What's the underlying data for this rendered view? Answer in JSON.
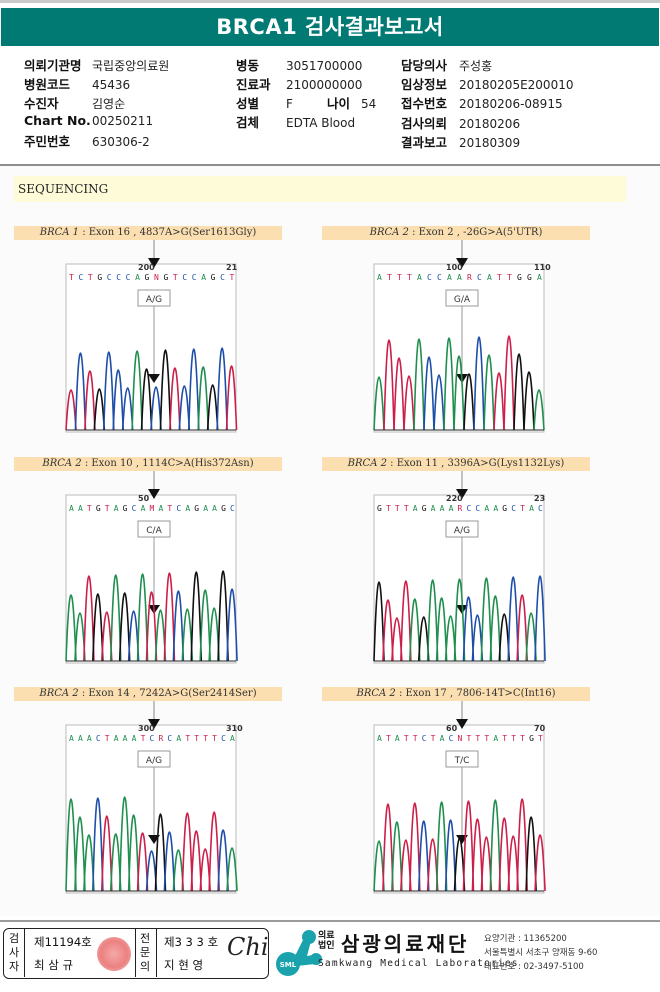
{
  "title": "BRCA1 검사결과보고서",
  "info": {
    "col1": [
      {
        "label": "의뢰기관명",
        "value": "국립중앙의료원"
      },
      {
        "label": "병원코드",
        "value": "45436"
      },
      {
        "label": "수진자",
        "value": "김영순"
      },
      {
        "label": "Chart No.",
        "value": "00250211"
      },
      {
        "label": "주민번호",
        "value": "630306-2"
      }
    ],
    "col2": [
      {
        "label": "병동",
        "value": "3051700000"
      },
      {
        "label": "진료과",
        "value": "2100000000"
      },
      {
        "label": "성별",
        "value": "F"
      },
      {
        "label": "검체",
        "value": "EDTA Blood"
      }
    ],
    "age": {
      "label": "나이",
      "value": "54"
    },
    "col3": [
      {
        "label": "담당의사",
        "value": "주성홍"
      },
      {
        "label": "임상정보",
        "value": "20180205E200010"
      },
      {
        "label": "접수번호",
        "value": "20180206-08915"
      },
      {
        "label": "검사의뢰",
        "value": "20180206"
      },
      {
        "label": "결과보고",
        "value": "20180309"
      }
    ]
  },
  "section_title": "SEQUENCING",
  "panels": [
    {
      "gene": "BRCA 1",
      "desc": " : Exon 16 , 4837A>G(Ser1613Gly)",
      "sequence": "TCTGCCCAGNGTCCAGCT",
      "pos_labels": [
        "200",
        "21"
      ],
      "call": "A/G"
    },
    {
      "gene": "BRCA 2",
      "desc": " : Exon 2 , -26G>A(5'UTR)",
      "sequence": "ATTTACCAARCATTGGA",
      "pos_labels": [
        "100",
        "110"
      ],
      "call": "G/A"
    },
    {
      "gene": "BRCA 2",
      "desc": " : Exon 10 , 1114C>A(His372Asn)",
      "sequence": "AATGTAGCAMATCAGAAGC",
      "pos_labels": [
        "50",
        ""
      ],
      "call": "C/A"
    },
    {
      "gene": "BRCA 2",
      "desc": " : Exon 11 , 3396A>G(Lys1132Lys)",
      "sequence": "GTTTAGAAARCCAAGCTAC",
      "pos_labels": [
        "220",
        "23"
      ],
      "call": "A/G"
    },
    {
      "gene": "BRCA 2",
      "desc": " : Exon 14 , 7242A>G(Ser2414Ser)",
      "sequence": "AAACTAAATCRCATTTTCA",
      "pos_labels": [
        "300",
        "310"
      ],
      "call": "A/G"
    },
    {
      "gene": "BRCA 2",
      "desc": " : Exon 17 , 7806-14T>C(Int16)",
      "sequence": "ATATTCTACNTTTATTTGT",
      "pos_labels": [
        "60",
        "70"
      ],
      "call": "T/C"
    }
  ],
  "footer": {
    "examiner_label": "검사자",
    "examiner_no": "제11194호",
    "examiner_name": "최 삼 규",
    "specialist_label": "전문의",
    "specialist_no": "제3 3 3 호",
    "specialist_name": "지 현 영",
    "signature": "Chi",
    "logo_text": "SML",
    "org_prefix": "의료법인",
    "org_name": "삼광의료재단",
    "org_name_en": "Samkwang Medical Laboratories",
    "org_code": "요양기관 : 11365200",
    "org_address": "서울특별시 서초구 양재동 9-60",
    "org_phone": "대표번호 : 02-3497-5100"
  },
  "colors": {
    "brand": "#007a73",
    "base_A": "#1f8f4e",
    "base_C": "#1e4fa8",
    "base_G": "#111111",
    "base_T": "#cc1f4a"
  }
}
